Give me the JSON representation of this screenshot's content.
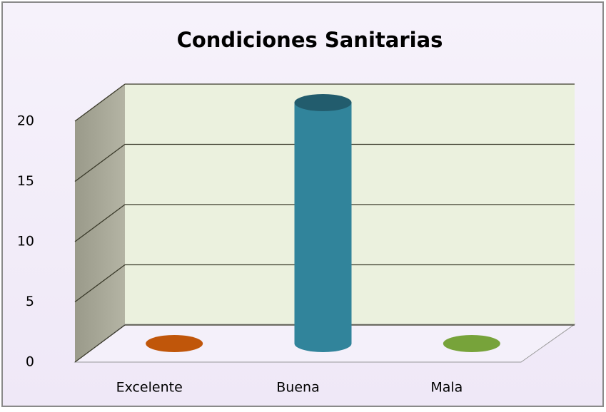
{
  "chart_data": {
    "type": "bar3d",
    "title": "Condiciones Sanitarias",
    "categories": [
      "Excelente",
      "Buena",
      "Mala"
    ],
    "values": [
      0,
      20,
      0
    ],
    "colors": [
      "#c0560a",
      "#31849b",
      "#77a33a"
    ],
    "ylim": [
      0,
      20
    ],
    "yticks": [
      0,
      5,
      10,
      15,
      20
    ],
    "grid": true
  }
}
